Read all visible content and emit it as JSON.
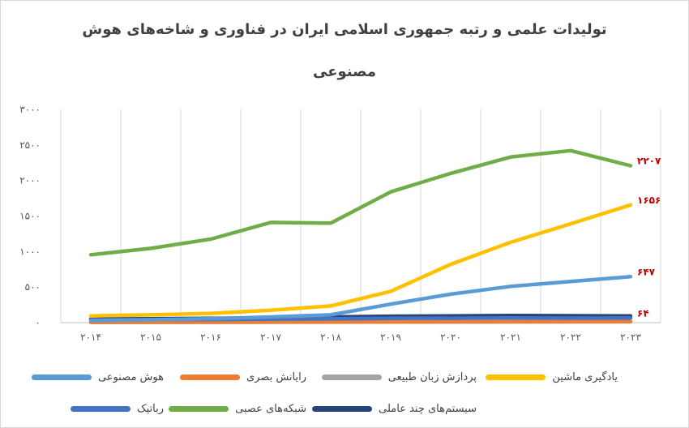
{
  "chart_data": {
    "type": "line",
    "title_line1": "تولیدات علمی و رتبه جمهوری اسلامی ایران در فناوری و شاخه‌های هوش",
    "title_line2": "مصنوعی",
    "x": [
      "۲۰۱۴",
      "۲۰۱۵",
      "۲۰۱۶",
      "۲۰۱۷",
      "۲۰۱۸",
      "۲۰۱۹",
      "۲۰۲۰",
      "۲۰۲۱",
      "۲۰۲۲",
      "۲۰۲۳"
    ],
    "ylim": [
      0,
      3000
    ],
    "y_ticks": [
      {
        "value": 0,
        "label": "۰"
      },
      {
        "value": 500,
        "label": "۵۰۰"
      },
      {
        "value": 1000,
        "label": "۱۰۰۰"
      },
      {
        "value": 1500,
        "label": "۱۵۰۰"
      },
      {
        "value": 2000,
        "label": "۲۰۰۰"
      },
      {
        "value": 2500,
        "label": "۲۵۰۰"
      },
      {
        "value": 3000,
        "label": "۳۰۰۰"
      }
    ],
    "grid": "vertical",
    "legend_position": "bottom",
    "series": [
      {
        "name": "هوش مصنوعی",
        "color": "#5b9bd5",
        "values": [
          30,
          40,
          55,
          80,
          110,
          260,
          400,
          510,
          580,
          647
        ],
        "end_label": "۶۴۷"
      },
      {
        "name": "رایانش بصری",
        "color": "#ed7d31",
        "values": [
          5,
          6,
          7,
          8,
          9,
          10,
          11,
          12,
          13,
          14
        ]
      },
      {
        "name": "پردازش زبان طبیعی",
        "color": "#a5a5a5",
        "values": [
          3,
          4,
          5,
          6,
          7,
          8,
          9,
          10,
          11,
          12
        ]
      },
      {
        "name": "یادگیری ماشین",
        "color": "#ffc000",
        "values": [
          95,
          110,
          130,
          175,
          235,
          440,
          820,
          1130,
          1390,
          1656
        ],
        "end_label": "۱۶۵۶"
      },
      {
        "name": "رباتیک",
        "color": "#4472c4",
        "values": [
          40,
          42,
          45,
          50,
          55,
          60,
          62,
          65,
          63,
          64
        ],
        "end_label": "۶۴"
      },
      {
        "name": "شبکه‌های عصبی",
        "color": "#70ad47",
        "values": [
          955,
          1045,
          1175,
          1410,
          1400,
          1840,
          2100,
          2330,
          2420,
          2207
        ],
        "end_label": "۲۲۰۷"
      },
      {
        "name": "سیستم‌های چند عاملی",
        "color": "#264478",
        "values": [
          50,
          55,
          60,
          68,
          80,
          90,
          95,
          100,
          97,
          93
        ]
      }
    ],
    "end_label_color": "#c00000"
  }
}
